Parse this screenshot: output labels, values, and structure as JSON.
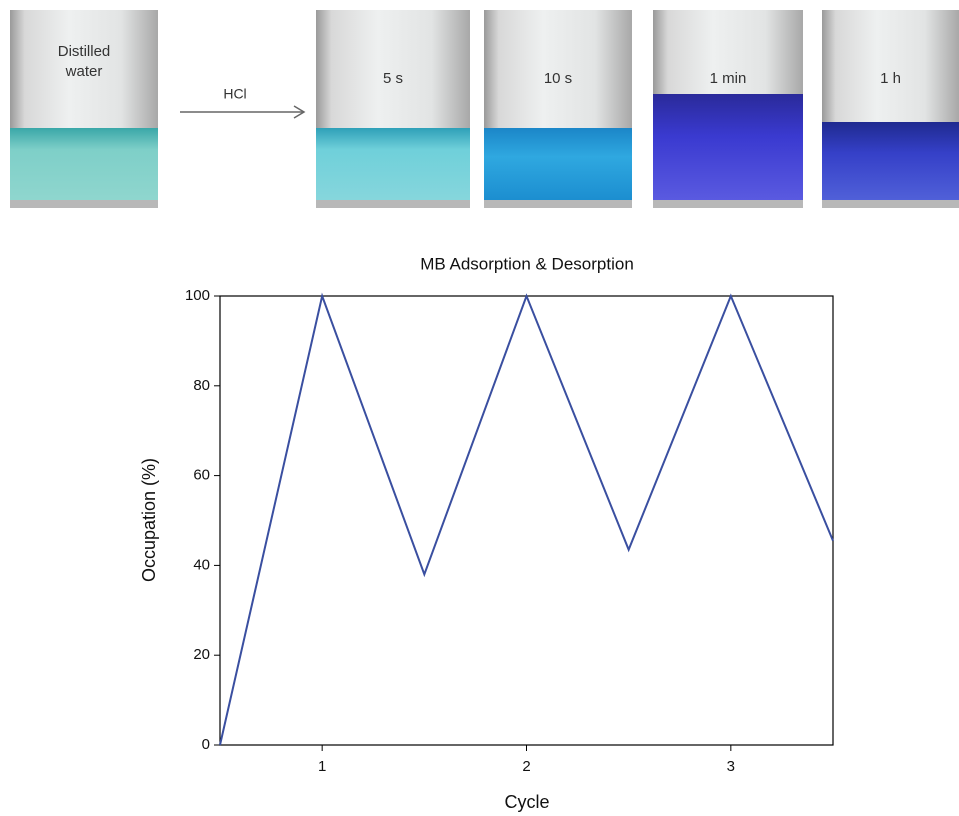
{
  "panel": {
    "before": "Distilled water",
    "reagent": "HCl",
    "times": [
      "5 s",
      "10 s",
      "1 min",
      "1 h"
    ]
  },
  "chart_data": {
    "type": "line",
    "title": "MB Adsorption & Desorption",
    "x_label": "Cycle",
    "y_label": "Occupation (%)",
    "x": [
      0.5,
      1,
      1.5,
      2,
      2.5,
      3,
      3.5
    ],
    "values": [
      0,
      100,
      38,
      100,
      43.5,
      100,
      45.5
    ],
    "color": "#3a4fa0",
    "xlim": [
      0.5,
      3.5
    ],
    "xticks": [
      1,
      2,
      3
    ],
    "ylim": [
      0,
      100
    ],
    "yticks": [
      0,
      20,
      40,
      60,
      80,
      100
    ]
  }
}
